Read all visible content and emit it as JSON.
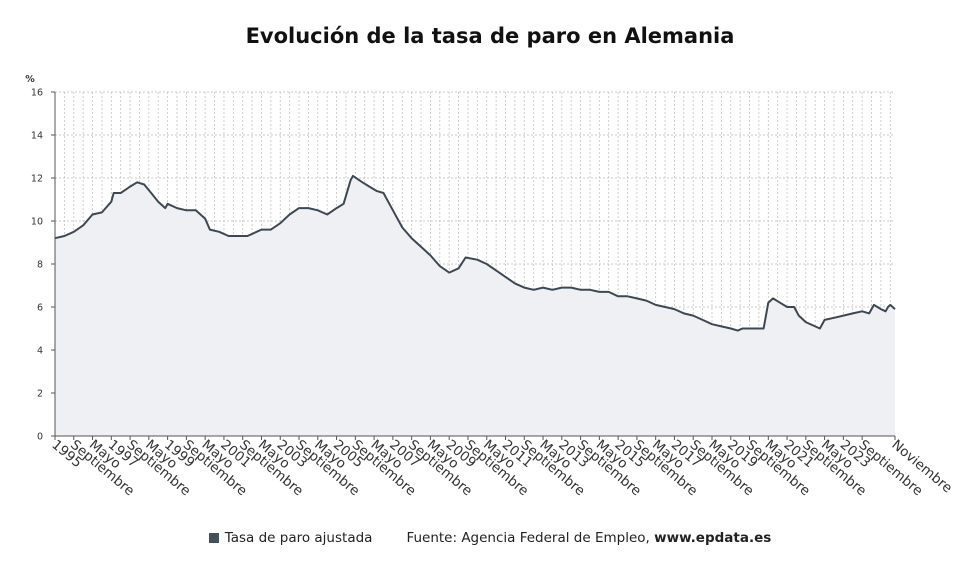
{
  "chart_data": {
    "type": "line",
    "title": "Evolución de la tasa de paro en Alemania",
    "ylabel": "%",
    "ylim": [
      0,
      16
    ],
    "yticks": [
      0,
      2,
      4,
      6,
      8,
      10,
      12,
      14,
      16
    ],
    "xlim": [
      "1995-01",
      "2024-11"
    ],
    "grid": true,
    "legend_position": "bottom",
    "x_tick_labels": [
      {
        "date": "1995-01",
        "label": "1995"
      },
      {
        "date": "1995-09",
        "label": "Septiembre"
      },
      {
        "date": "1996-05",
        "label": "Mayo"
      },
      {
        "date": "1997-01",
        "label": "1997"
      },
      {
        "date": "1997-09",
        "label": "Septiembre"
      },
      {
        "date": "1998-05",
        "label": "Mayo"
      },
      {
        "date": "1999-01",
        "label": "1999"
      },
      {
        "date": "1999-09",
        "label": "Septiembre"
      },
      {
        "date": "2000-05",
        "label": "Mayo"
      },
      {
        "date": "2001-01",
        "label": "2001"
      },
      {
        "date": "2001-09",
        "label": "Septiembre"
      },
      {
        "date": "2002-05",
        "label": "Mayo"
      },
      {
        "date": "2003-01",
        "label": "2003"
      },
      {
        "date": "2003-09",
        "label": "Septiembre"
      },
      {
        "date": "2004-05",
        "label": "Mayo"
      },
      {
        "date": "2005-01",
        "label": "2005"
      },
      {
        "date": "2005-09",
        "label": "Septiembre"
      },
      {
        "date": "2006-05",
        "label": "Mayo"
      },
      {
        "date": "2007-01",
        "label": "2007"
      },
      {
        "date": "2007-09",
        "label": "Septiembre"
      },
      {
        "date": "2008-05",
        "label": "Mayo"
      },
      {
        "date": "2009-01",
        "label": "2009"
      },
      {
        "date": "2009-09",
        "label": "Septiembre"
      },
      {
        "date": "2010-05",
        "label": "Mayo"
      },
      {
        "date": "2011-01",
        "label": "2011"
      },
      {
        "date": "2011-09",
        "label": "Septiembre"
      },
      {
        "date": "2012-05",
        "label": "Mayo"
      },
      {
        "date": "2013-01",
        "label": "2013"
      },
      {
        "date": "2013-09",
        "label": "Septiembre"
      },
      {
        "date": "2014-05",
        "label": "Mayo"
      },
      {
        "date": "2015-01",
        "label": "2015"
      },
      {
        "date": "2015-09",
        "label": "Septiembre"
      },
      {
        "date": "2016-05",
        "label": "Mayo"
      },
      {
        "date": "2017-01",
        "label": "2017"
      },
      {
        "date": "2017-09",
        "label": "Septiembre"
      },
      {
        "date": "2018-05",
        "label": "Mayo"
      },
      {
        "date": "2019-01",
        "label": "2019"
      },
      {
        "date": "2019-09",
        "label": "Septiembre"
      },
      {
        "date": "2020-05",
        "label": "Mayo"
      },
      {
        "date": "2021-01",
        "label": "2021"
      },
      {
        "date": "2021-09",
        "label": "Septiembre"
      },
      {
        "date": "2022-05",
        "label": "Mayo"
      },
      {
        "date": "2023-01",
        "label": "2023"
      },
      {
        "date": "2023-09",
        "label": "Septiembre"
      },
      {
        "date": "2024-11",
        "label": "Noviembre"
      }
    ],
    "series": [
      {
        "name": "Tasa de paro ajustada",
        "color": "#3d4852",
        "fill": "#eef0f3",
        "points": [
          [
            "1995-01",
            9.2
          ],
          [
            "1995-05",
            9.3
          ],
          [
            "1995-09",
            9.5
          ],
          [
            "1996-01",
            9.8
          ],
          [
            "1996-05",
            10.3
          ],
          [
            "1996-09",
            10.4
          ],
          [
            "1997-01",
            10.9
          ],
          [
            "1997-02",
            11.3
          ],
          [
            "1997-05",
            11.3
          ],
          [
            "1997-09",
            11.6
          ],
          [
            "1997-12",
            11.8
          ],
          [
            "1998-03",
            11.7
          ],
          [
            "1998-06",
            11.3
          ],
          [
            "1998-09",
            10.9
          ],
          [
            "1998-12",
            10.6
          ],
          [
            "1999-01",
            10.8
          ],
          [
            "1999-05",
            10.6
          ],
          [
            "1999-09",
            10.5
          ],
          [
            "2000-01",
            10.5
          ],
          [
            "2000-05",
            10.1
          ],
          [
            "2000-07",
            9.6
          ],
          [
            "2000-11",
            9.5
          ],
          [
            "2001-03",
            9.3
          ],
          [
            "2001-09",
            9.3
          ],
          [
            "2001-11",
            9.3
          ],
          [
            "2002-01",
            9.4
          ],
          [
            "2002-05",
            9.6
          ],
          [
            "2002-09",
            9.6
          ],
          [
            "2003-01",
            9.9
          ],
          [
            "2003-05",
            10.3
          ],
          [
            "2003-09",
            10.6
          ],
          [
            "2004-01",
            10.6
          ],
          [
            "2004-05",
            10.5
          ],
          [
            "2004-09",
            10.3
          ],
          [
            "2005-01",
            10.6
          ],
          [
            "2005-04",
            10.8
          ],
          [
            "2005-07",
            11.9
          ],
          [
            "2005-08",
            12.1
          ],
          [
            "2005-12",
            11.8
          ],
          [
            "2006-03",
            11.6
          ],
          [
            "2006-06",
            11.4
          ],
          [
            "2006-09",
            11.3
          ],
          [
            "2006-11",
            10.9
          ],
          [
            "2007-01",
            10.5
          ],
          [
            "2007-05",
            9.7
          ],
          [
            "2007-09",
            9.2
          ],
          [
            "2008-01",
            8.8
          ],
          [
            "2008-05",
            8.4
          ],
          [
            "2008-09",
            7.9
          ],
          [
            "2009-01",
            7.6
          ],
          [
            "2009-05",
            7.8
          ],
          [
            "2009-08",
            8.3
          ],
          [
            "2010-01",
            8.2
          ],
          [
            "2010-05",
            8.0
          ],
          [
            "2010-09",
            7.7
          ],
          [
            "2011-01",
            7.4
          ],
          [
            "2011-05",
            7.1
          ],
          [
            "2011-09",
            6.9
          ],
          [
            "2012-01",
            6.8
          ],
          [
            "2012-05",
            6.9
          ],
          [
            "2012-09",
            6.8
          ],
          [
            "2013-01",
            6.9
          ],
          [
            "2013-05",
            6.9
          ],
          [
            "2013-09",
            6.8
          ],
          [
            "2014-01",
            6.8
          ],
          [
            "2014-05",
            6.7
          ],
          [
            "2014-09",
            6.7
          ],
          [
            "2015-01",
            6.5
          ],
          [
            "2015-05",
            6.5
          ],
          [
            "2015-09",
            6.4
          ],
          [
            "2016-01",
            6.3
          ],
          [
            "2016-05",
            6.1
          ],
          [
            "2016-09",
            6.0
          ],
          [
            "2017-01",
            5.9
          ],
          [
            "2017-05",
            5.7
          ],
          [
            "2017-09",
            5.6
          ],
          [
            "2018-01",
            5.4
          ],
          [
            "2018-05",
            5.2
          ],
          [
            "2018-09",
            5.1
          ],
          [
            "2019-01",
            5.0
          ],
          [
            "2019-04",
            4.9
          ],
          [
            "2019-06",
            5.0
          ],
          [
            "2019-09",
            5.0
          ],
          [
            "2020-01",
            5.0
          ],
          [
            "2020-03",
            5.0
          ],
          [
            "2020-05",
            6.2
          ],
          [
            "2020-07",
            6.4
          ],
          [
            "2020-10",
            6.2
          ],
          [
            "2021-01",
            6.0
          ],
          [
            "2021-04",
            6.0
          ],
          [
            "2021-06",
            5.6
          ],
          [
            "2021-09",
            5.3
          ],
          [
            "2022-01",
            5.1
          ],
          [
            "2022-03",
            5.0
          ],
          [
            "2022-05",
            5.4
          ],
          [
            "2022-09",
            5.5
          ],
          [
            "2023-01",
            5.6
          ],
          [
            "2023-05",
            5.7
          ],
          [
            "2023-09",
            5.8
          ],
          [
            "2023-12",
            5.7
          ],
          [
            "2024-02",
            6.1
          ],
          [
            "2024-05",
            5.9
          ],
          [
            "2024-07",
            5.8
          ],
          [
            "2024-08",
            6.0
          ],
          [
            "2024-09",
            6.1
          ],
          [
            "2024-11",
            5.9
          ]
        ]
      }
    ]
  },
  "legend": {
    "series_label": "Tasa de paro ajustada",
    "source_label": "Fuente: Agencia Federal de Empleo,",
    "source_site": "www.epdata.es"
  }
}
